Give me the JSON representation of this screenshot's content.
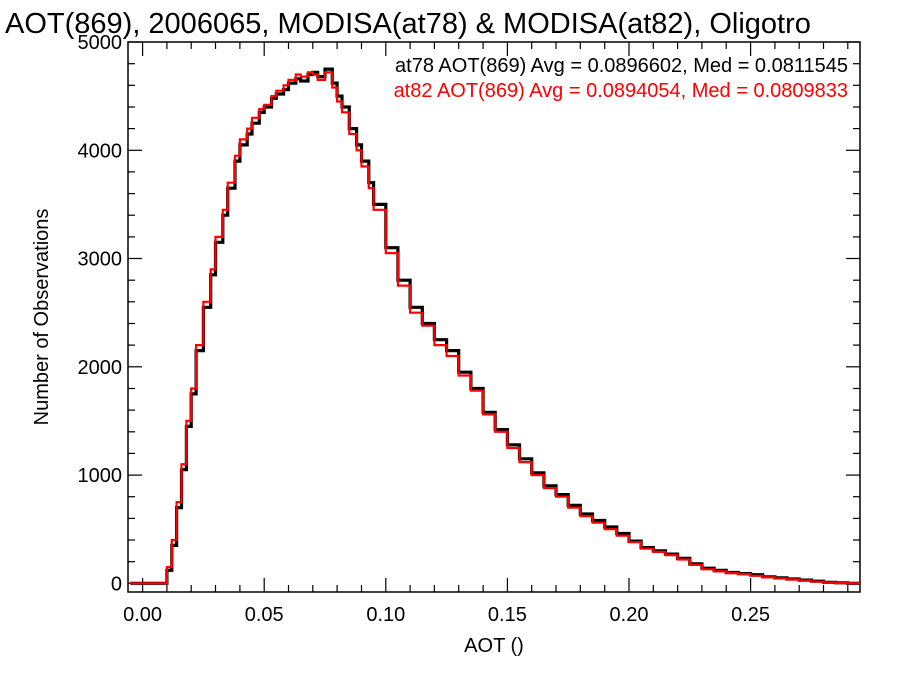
{
  "chart_data": {
    "type": "line",
    "style": "step-histogram",
    "title": "AOT(869), 2006065, MODISA(at78) & MODISA(at82), Oligotro",
    "xlabel": "AOT ()",
    "ylabel": "Number of Observations",
    "xlim": [
      -0.006,
      0.295
    ],
    "ylim": [
      -80,
      5000
    ],
    "xticks": [
      0.0,
      0.05,
      0.1,
      0.15,
      0.2,
      0.25
    ],
    "xtick_labels": [
      "0.00",
      "0.05",
      "0.10",
      "0.15",
      "0.20",
      "0.25"
    ],
    "yticks": [
      0,
      1000,
      2000,
      3000,
      4000,
      5000
    ],
    "ytick_labels": [
      "0",
      "1000",
      "2000",
      "3000",
      "4000",
      "5000"
    ],
    "grid": false,
    "series": [
      {
        "name": "at78",
        "color": "#000000",
        "annotation": "at78 AOT(869) Avg = 0.0896602, Med = 0.0811545",
        "x": [
          -0.005,
          0.0,
          0.005,
          0.009,
          0.01,
          0.012,
          0.014,
          0.016,
          0.018,
          0.02,
          0.022,
          0.025,
          0.028,
          0.03,
          0.033,
          0.035,
          0.038,
          0.04,
          0.043,
          0.045,
          0.048,
          0.05,
          0.053,
          0.055,
          0.058,
          0.06,
          0.063,
          0.065,
          0.068,
          0.07,
          0.072,
          0.075,
          0.078,
          0.08,
          0.082,
          0.085,
          0.088,
          0.09,
          0.093,
          0.095,
          0.1,
          0.105,
          0.11,
          0.115,
          0.12,
          0.125,
          0.13,
          0.135,
          0.14,
          0.145,
          0.15,
          0.155,
          0.16,
          0.165,
          0.17,
          0.175,
          0.18,
          0.185,
          0.19,
          0.195,
          0.2,
          0.205,
          0.21,
          0.215,
          0.22,
          0.225,
          0.23,
          0.235,
          0.24,
          0.245,
          0.25,
          0.255,
          0.26,
          0.265,
          0.27,
          0.275,
          0.28,
          0.285,
          0.29,
          0.294
        ],
        "values": [
          0,
          0,
          0,
          0,
          120,
          350,
          700,
          1050,
          1450,
          1750,
          2150,
          2550,
          2850,
          3150,
          3400,
          3650,
          3900,
          4050,
          4150,
          4250,
          4350,
          4400,
          4480,
          4520,
          4560,
          4620,
          4660,
          4640,
          4700,
          4720,
          4680,
          4750,
          4620,
          4500,
          4400,
          4200,
          4050,
          3900,
          3700,
          3500,
          3100,
          2800,
          2550,
          2400,
          2250,
          2150,
          1950,
          1800,
          1580,
          1420,
          1280,
          1150,
          1020,
          900,
          820,
          720,
          640,
          580,
          520,
          460,
          390,
          330,
          300,
          270,
          230,
          180,
          140,
          120,
          100,
          90,
          80,
          60,
          50,
          40,
          30,
          20,
          10,
          5,
          0,
          0
        ]
      },
      {
        "name": "at82",
        "color": "#ff0000",
        "annotation": "at82 AOT(869) Avg = 0.0894054, Med = 0.0809833",
        "x": [
          -0.005,
          0.0,
          0.005,
          0.009,
          0.01,
          0.012,
          0.014,
          0.016,
          0.018,
          0.02,
          0.022,
          0.025,
          0.028,
          0.03,
          0.033,
          0.035,
          0.038,
          0.04,
          0.043,
          0.045,
          0.048,
          0.05,
          0.053,
          0.055,
          0.058,
          0.06,
          0.063,
          0.065,
          0.068,
          0.07,
          0.072,
          0.075,
          0.078,
          0.08,
          0.082,
          0.085,
          0.088,
          0.09,
          0.093,
          0.095,
          0.1,
          0.105,
          0.11,
          0.115,
          0.12,
          0.125,
          0.13,
          0.135,
          0.14,
          0.145,
          0.15,
          0.155,
          0.16,
          0.165,
          0.17,
          0.175,
          0.18,
          0.185,
          0.19,
          0.195,
          0.2,
          0.205,
          0.21,
          0.215,
          0.22,
          0.225,
          0.23,
          0.235,
          0.24,
          0.245,
          0.25,
          0.255,
          0.26,
          0.265,
          0.27,
          0.275,
          0.28,
          0.285,
          0.29,
          0.294
        ],
        "values": [
          0,
          0,
          0,
          0,
          150,
          400,
          750,
          1100,
          1500,
          1800,
          2200,
          2600,
          2900,
          3200,
          3450,
          3700,
          3950,
          4100,
          4200,
          4300,
          4380,
          4420,
          4500,
          4550,
          4600,
          4650,
          4700,
          4680,
          4720,
          4700,
          4650,
          4720,
          4580,
          4450,
          4350,
          4150,
          4000,
          3850,
          3650,
          3450,
          3050,
          2750,
          2500,
          2380,
          2200,
          2100,
          1920,
          1780,
          1560,
          1400,
          1250,
          1120,
          1000,
          880,
          800,
          700,
          620,
          560,
          500,
          440,
          380,
          320,
          290,
          260,
          220,
          170,
          130,
          110,
          95,
          85,
          70,
          55,
          45,
          35,
          25,
          15,
          8,
          3,
          0,
          0
        ]
      }
    ]
  }
}
